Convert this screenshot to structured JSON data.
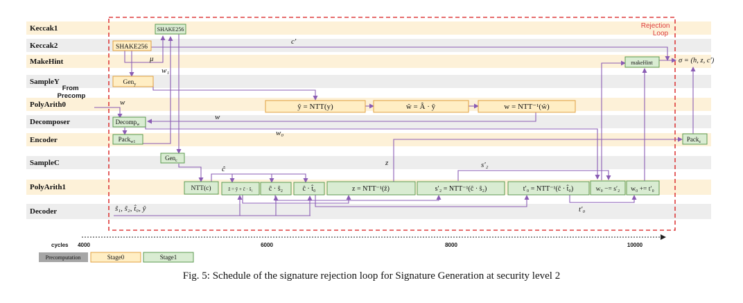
{
  "rows": [
    {
      "label": "Keccak1",
      "tint": "orange"
    },
    {
      "label": "Keccak2",
      "tint": "gray"
    },
    {
      "label": "MakeHint",
      "tint": "orange"
    },
    {
      "label": "SampleY",
      "tint": "gray"
    },
    {
      "label": "PolyArith0",
      "tint": "orange"
    },
    {
      "label": "Decomposer",
      "tint": "gray"
    },
    {
      "label": "Encoder",
      "tint": "orange"
    },
    {
      "label": "SampleC",
      "tint": "gray"
    },
    {
      "label": "PolyArith1",
      "tint": "orange"
    },
    {
      "label": "Decoder",
      "tint": "gray"
    }
  ],
  "loop_label": "Rejection Loop",
  "precomp_note": "From Precomp",
  "blocks": {
    "shake_top": "SHAKE256",
    "shake_k2": "SHAKE256",
    "makehint": "makeHint",
    "gen_y": "Gen",
    "gen_y_sub": "y",
    "decomp_w": "Decomp",
    "decomp_w_sub": "w",
    "pack_w1": "Pack",
    "pack_w1_sub": "w1",
    "gen_c": "Gen",
    "gen_c_sub": "c",
    "pack_z": "Pack",
    "pack_z_sub": "z",
    "ntt_y": "ŷ = NTT(y)",
    "mat_mul": "ŵ = Â · ŷ",
    "intt_w": "w = NTT⁻¹(ŵ)",
    "ntt_c": "NTT(c)",
    "zhat": "ẑ = ŷ + ĉ · ŝ₁",
    "cs2": "ĉ · ŝ₂",
    "ct0": "ĉ · t̂₀",
    "intt_z": "z = NTT⁻¹(ẑ)",
    "intt_s2": "s′₂ = NTT⁻¹(ĉ · ŝ₂)",
    "intt_t0": "t′₀ = NTT⁻¹(ĉ · t̂₀)",
    "w0_sub": "w₀ −= s′₂",
    "w0_add": "w₀ += t′₀"
  },
  "annotations": {
    "c_prime": "c′",
    "mu": "μ",
    "w1": "w₁",
    "w_in": "w",
    "w_mid": "w",
    "w0": "w₀",
    "z": "z",
    "s2_prime": "s′₂",
    "c_hat": "ĉ",
    "t0_prime": "t′₀",
    "decoder_inputs": "ŝ₁, ŝ₂, t̂₀, ŷ",
    "sigma": "σ = (h, z, c′)"
  },
  "timeline": {
    "axis_label": "cycles",
    "ticks": [
      "4000",
      "6000",
      "8000",
      "10000"
    ]
  },
  "legend": [
    {
      "label": "Precomputation",
      "color": "#a6a6a6"
    },
    {
      "label": "Stage0",
      "color": "#ffe8b0"
    },
    {
      "label": "Stage1",
      "color": "#d8ecd0"
    }
  ],
  "colors": {
    "orange_row": "#fdf1d8",
    "gray_row": "#ededed",
    "stage0_fill": "#ffeec4",
    "stage0_stroke": "#e0a040",
    "stage1_fill": "#d9ecd2",
    "stage1_stroke": "#5c9a50",
    "arrow": "#8a5cb4",
    "loop": "#dd3b3b"
  },
  "caption": "Fig. 5: Schedule of the signature rejection loop for Signature Generation at security level 2"
}
